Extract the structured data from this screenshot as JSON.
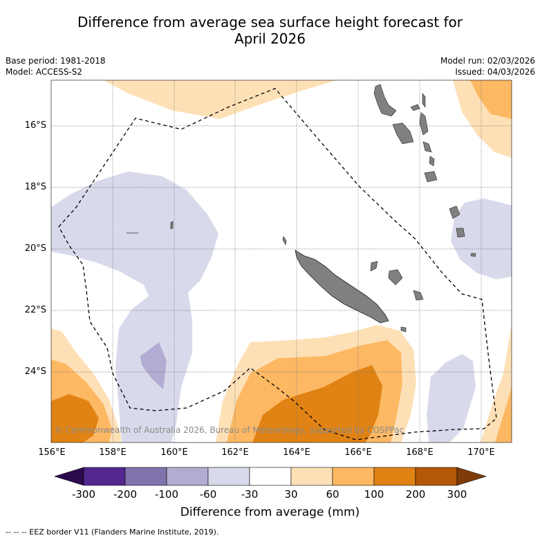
{
  "title_line1": "Difference from average sea surface height forecast for",
  "title_line2": "April 2026",
  "base_period": "Base period: 1981-2018",
  "model": "Model: ACCESS-S2",
  "model_run": "Model run: 02/03/2026",
  "issued": "Issued: 04/03/2026",
  "copyright": "© Commonwealth of Australia 2026, Bureau of Meteorology, supported by COSPPac",
  "footnote": "--  --  -- EEZ border V11 (Flanders Marine Institute, 2019).",
  "colorbar": {
    "label": "Difference from average (mm)",
    "ticks": [
      "-300",
      "-200",
      "-100",
      "-60",
      "-30",
      "30",
      "60",
      "100",
      "200",
      "300"
    ],
    "colors": [
      "#2d0a4e",
      "#54278f",
      "#8073ac",
      "#b2abd2",
      "#d8daeb",
      "#ffffff",
      "#fee0b6",
      "#fdb863",
      "#e08214",
      "#b35806",
      "#7f3b08"
    ]
  },
  "axes": {
    "lat_labels": [
      "16°S",
      "18°S",
      "20°S",
      "22°S",
      "24°S"
    ],
    "lon_labels": [
      "156°E",
      "158°E",
      "160°E",
      "162°E",
      "164°E",
      "166°E",
      "168°E",
      "170°E"
    ]
  },
  "land_color": "#808080"
}
